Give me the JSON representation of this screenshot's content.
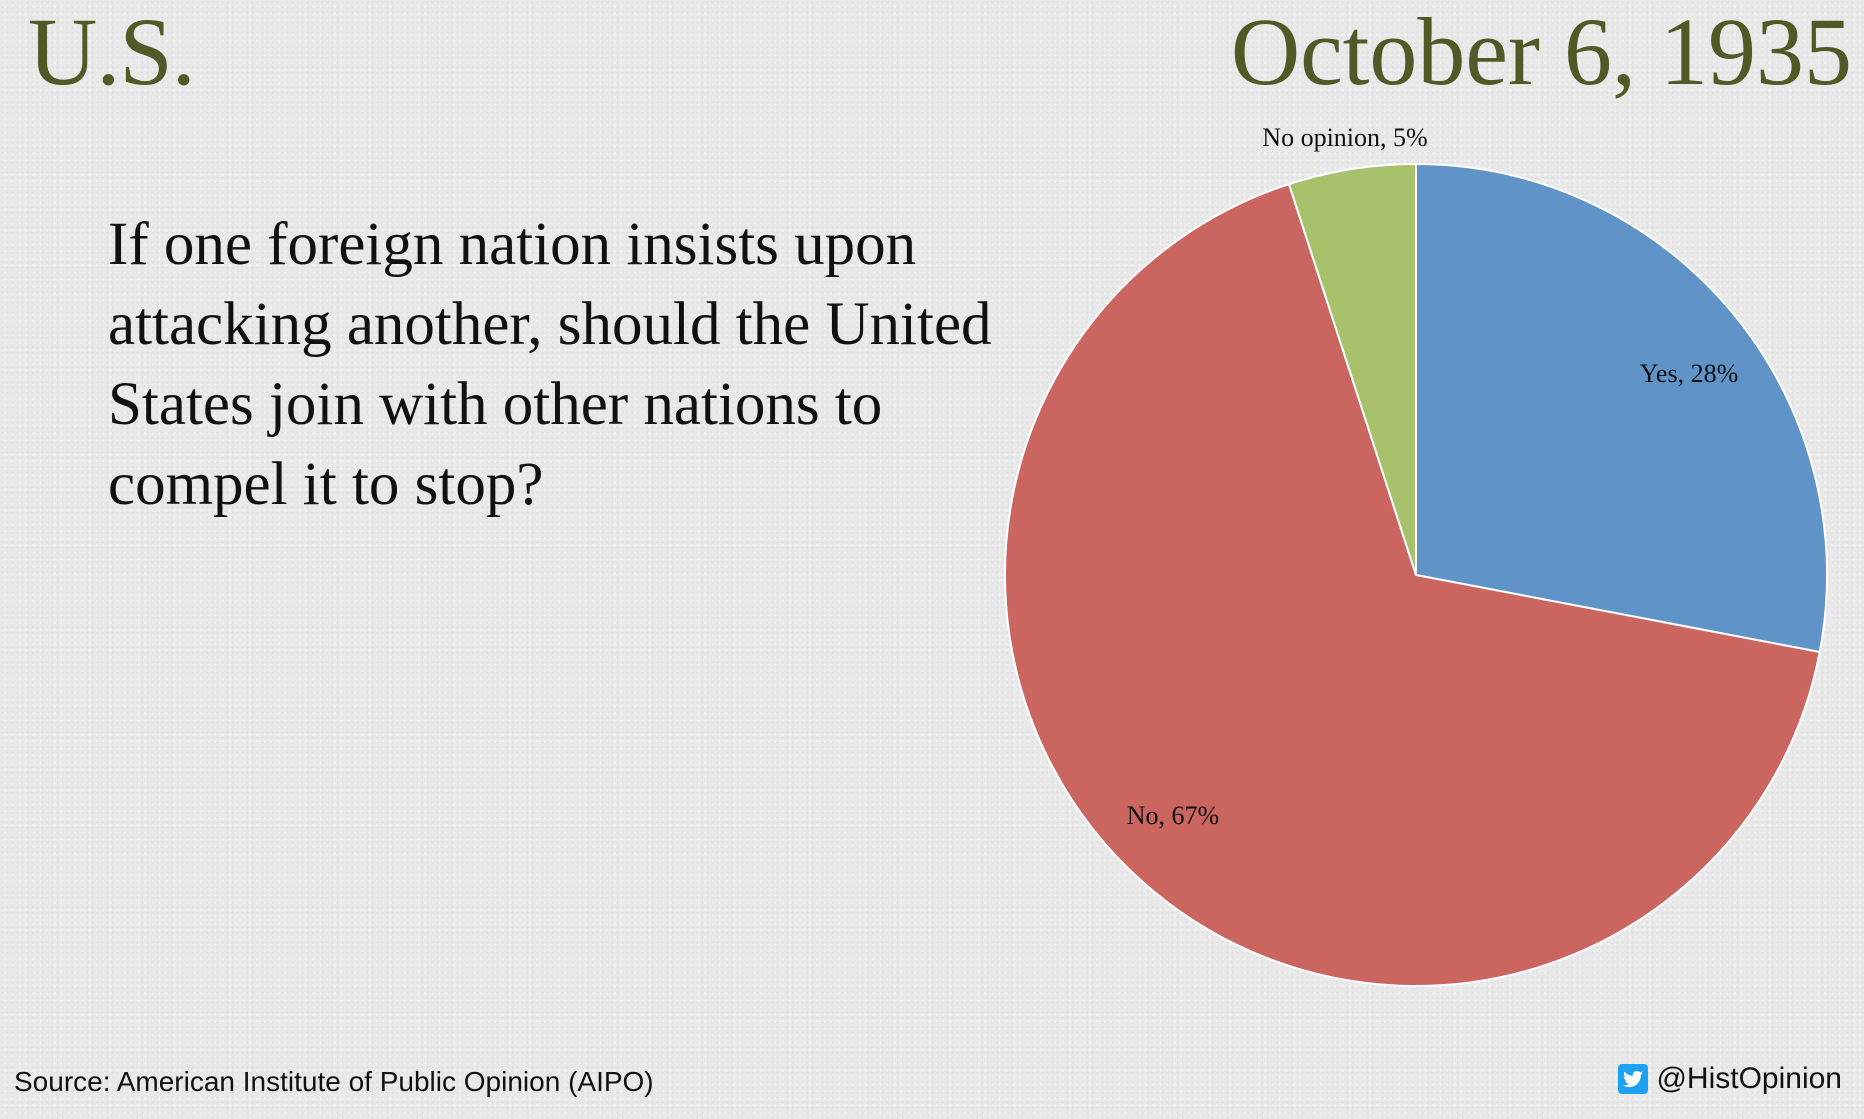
{
  "header": {
    "region": "U.S.",
    "date": "October 6, 1935"
  },
  "question": "If one foreign nation insists upon attacking another, should the United States join with other nations to compel it to stop?",
  "footer": {
    "source": "Source: American Institute of Public Opinion (AIPO)",
    "handle": "@HistOpinion",
    "handle_icon": "twitter-bird-icon"
  },
  "chart_data": {
    "type": "pie",
    "categories": [
      "Yes",
      "No",
      "No opinion"
    ],
    "values": [
      28,
      67,
      5
    ],
    "labels": [
      "Yes, 28%",
      "No, 67%",
      "No opinion, 5%"
    ],
    "colors": [
      "#6094c8",
      "#cb6560",
      "#a8c26c"
    ],
    "unit": "%",
    "start": "12 o'clock",
    "direction": "clockwise"
  }
}
